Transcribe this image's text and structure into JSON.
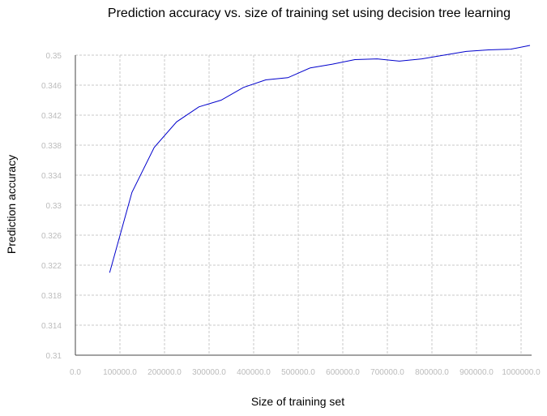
{
  "chart_data": {
    "type": "line",
    "title": "Prediction accuracy vs. size of training set using decision tree learning",
    "xlabel": "Size of training set",
    "ylabel": "Prediction accuracy",
    "xlim": [
      0,
      1000000
    ],
    "ylim": [
      0.31,
      0.35
    ],
    "xticks": [
      0,
      100000,
      200000,
      300000,
      400000,
      500000,
      600000,
      700000,
      800000,
      900000,
      1000000
    ],
    "xtick_labels": [
      "0.0",
      "100000.0",
      "200000.0",
      "300000.0",
      "400000.0",
      "500000.0",
      "600000.0",
      "700000.0",
      "800000.0",
      "900000.0",
      "1000000.0"
    ],
    "yticks": [
      0.31,
      0.314,
      0.318,
      0.322,
      0.326,
      0.33,
      0.334,
      0.338,
      0.342,
      0.346,
      0.35
    ],
    "ytick_labels": [
      "0.31",
      "0.314",
      "0.318",
      "0.322",
      "0.326",
      "0.33",
      "0.334",
      "0.338",
      "0.342",
      "0.346",
      "0.35"
    ],
    "grid": true,
    "line_color": "#0000cc",
    "series": [
      {
        "x": [
          77000,
          127000,
          177000,
          227000,
          277000,
          327000,
          377000,
          427000,
          477000,
          527000,
          577000,
          627000,
          677000,
          727000,
          777000,
          827000,
          877000,
          927000,
          977000,
          1020000
        ],
        "values": [
          0.321,
          0.3317,
          0.3377,
          0.3411,
          0.3431,
          0.344,
          0.3457,
          0.3467,
          0.347,
          0.3483,
          0.3488,
          0.3494,
          0.3495,
          0.3492,
          0.3495,
          0.35,
          0.3505,
          0.3507,
          0.3508,
          0.3513
        ]
      }
    ]
  }
}
